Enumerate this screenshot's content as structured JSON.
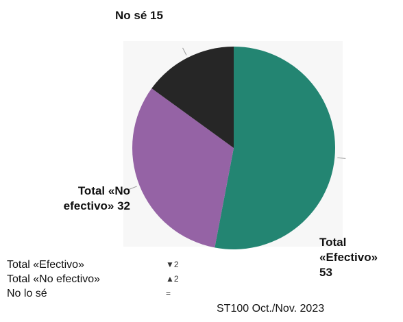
{
  "chart_data": {
    "type": "pie",
    "categories": [
      "Total «Efectivo»",
      "Total «No efectivo»",
      "No lo sé"
    ],
    "values": [
      53,
      32,
      15
    ],
    "colors": [
      "#238572",
      "#9563A5",
      "#262626"
    ],
    "slice_labels": [
      {
        "name": "Total «Efectivo»",
        "value": "53",
        "lines": [
          "Total",
          "«Efectivo»",
          "53"
        ]
      },
      {
        "name": "Total «No efectivo»",
        "value": "32",
        "lines": [
          "Total «No",
          "efectivo» 32"
        ]
      },
      {
        "name": "No sé",
        "value": "15",
        "lines": [
          "No sé 15"
        ]
      }
    ],
    "legend": [
      {
        "label": "Total «Efectivo»",
        "change_icon": "triangle-down-icon",
        "change_text": "2"
      },
      {
        "label": "Total «No efectivo»",
        "change_icon": "triangle-up-icon",
        "change_text": "2"
      },
      {
        "label": "No lo sé",
        "change_icon": "equals-icon",
        "change_text": "="
      }
    ],
    "source": "ST100 Oct./Nov. 2023",
    "legend_position": "bottom-left",
    "start_angle_deg": 0,
    "direction": "clockwise"
  }
}
